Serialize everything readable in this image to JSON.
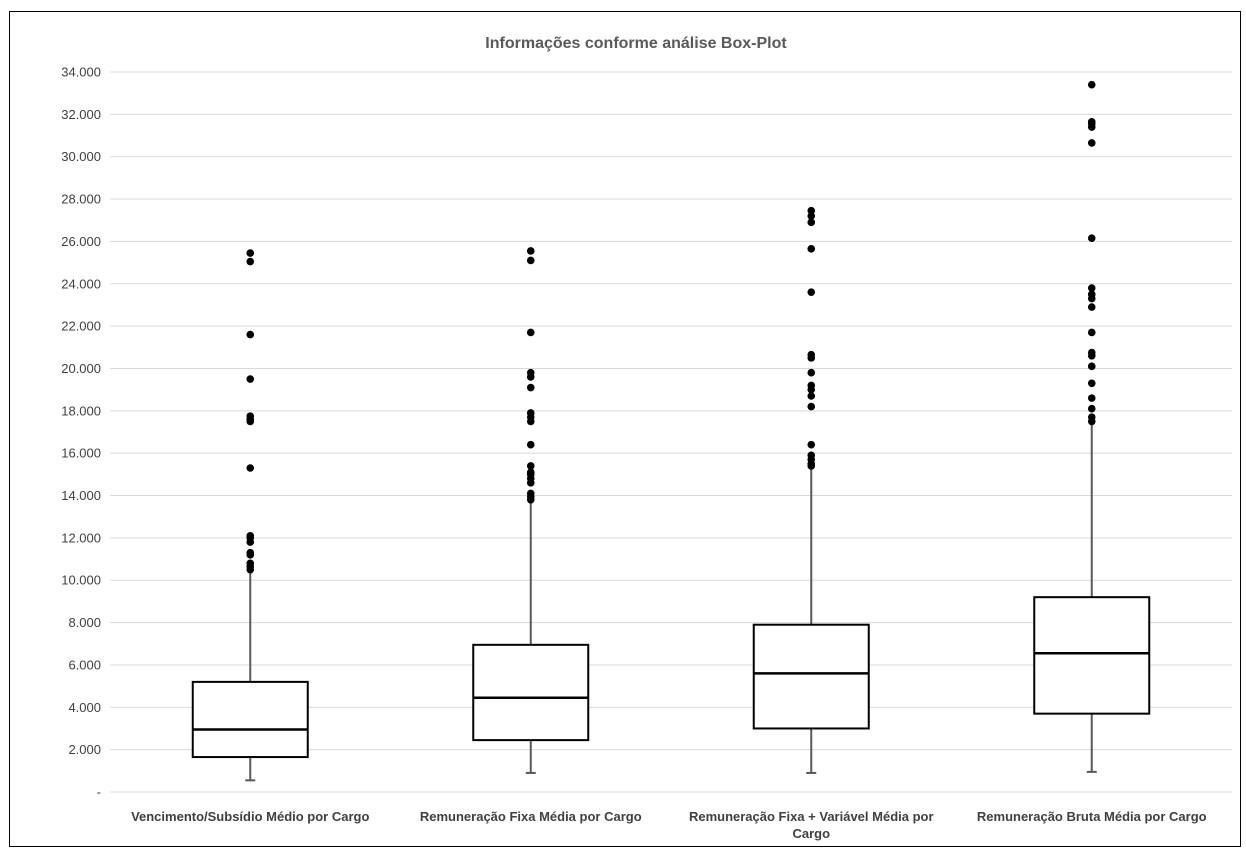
{
  "chart_data": {
    "type": "boxplot",
    "title": "Informações conforme análise Box-Plot",
    "xlabel": "",
    "ylabel": "",
    "ylim": [
      0,
      34000
    ],
    "y_ticks": [
      0,
      2000,
      4000,
      6000,
      8000,
      10000,
      12000,
      14000,
      16000,
      18000,
      20000,
      22000,
      24000,
      26000,
      28000,
      30000,
      32000,
      34000
    ],
    "y_tick_labels": [
      "-",
      "2.000",
      "4.000",
      "6.000",
      "8.000",
      "10.000",
      "12.000",
      "14.000",
      "16.000",
      "18.000",
      "20.000",
      "22.000",
      "24.000",
      "26.000",
      "28.000",
      "30.000",
      "32.000",
      "34.000"
    ],
    "grid": true,
    "legend": "none",
    "colors": {
      "box": "#000000",
      "whisker": "#595959",
      "grid": "#d9d9d9",
      "outlier": "#000000"
    },
    "categories": [
      [
        "Vencimento/Subsídio Médio por Cargo"
      ],
      [
        "Remuneração Fixa Média por Cargo"
      ],
      [
        "Remuneração Fixa + Variável Média por",
        "Cargo"
      ],
      [
        "Remuneração Bruta Média por Cargo"
      ]
    ],
    "boxes": [
      {
        "min": 550,
        "q1": 1650,
        "median": 2950,
        "q3": 5200,
        "max": 10500,
        "outliers": [
          10500,
          10650,
          10800,
          11200,
          11300,
          11800,
          12000,
          12100,
          15300,
          17500,
          17600,
          17750,
          19500,
          21600,
          25050,
          25450
        ]
      },
      {
        "min": 900,
        "q1": 2450,
        "median": 4450,
        "q3": 6950,
        "max": 13700,
        "outliers": [
          13800,
          13950,
          14100,
          14600,
          14800,
          15000,
          15100,
          15400,
          16400,
          17500,
          17700,
          17900,
          19100,
          19600,
          19800,
          21700,
          25100,
          25550
        ]
      },
      {
        "min": 900,
        "q1": 3000,
        "median": 5600,
        "q3": 7900,
        "max": 15300,
        "outliers": [
          15400,
          15500,
          15700,
          15900,
          16400,
          18200,
          18700,
          19000,
          19200,
          19800,
          20500,
          20650,
          23600,
          25650,
          26900,
          27200,
          27450
        ]
      },
      {
        "min": 950,
        "q1": 3700,
        "median": 6550,
        "q3": 9200,
        "max": 17400,
        "outliers": [
          17500,
          17700,
          18100,
          18600,
          19300,
          20100,
          20600,
          20750,
          21700,
          22900,
          23300,
          23500,
          23800,
          26150,
          30650,
          31400,
          31550,
          31650,
          33400
        ]
      }
    ]
  }
}
